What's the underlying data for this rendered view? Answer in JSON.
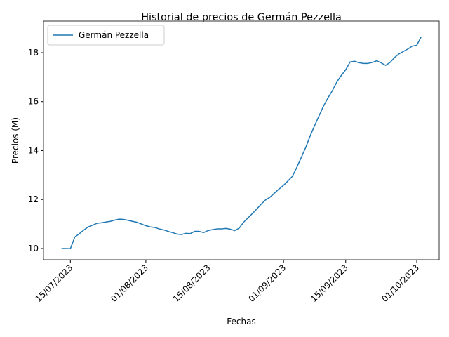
{
  "chart_data": {
    "type": "line",
    "title": "Historial de precios de Germán Pezzella",
    "xlabel": "Fechas",
    "ylabel": "Precios (M)",
    "x": [
      "2023-07-13",
      "2023-07-14",
      "2023-07-15",
      "2023-07-16",
      "2023-07-17",
      "2023-07-18",
      "2023-07-19",
      "2023-07-20",
      "2023-07-21",
      "2023-07-22",
      "2023-07-23",
      "2023-07-24",
      "2023-07-25",
      "2023-07-26",
      "2023-07-27",
      "2023-07-28",
      "2023-07-29",
      "2023-07-30",
      "2023-07-31",
      "2023-08-01",
      "2023-08-02",
      "2023-08-03",
      "2023-08-04",
      "2023-08-05",
      "2023-08-06",
      "2023-08-07",
      "2023-08-08",
      "2023-08-09",
      "2023-08-10",
      "2023-08-11",
      "2023-08-12",
      "2023-08-13",
      "2023-08-14",
      "2023-08-15",
      "2023-08-16",
      "2023-08-17",
      "2023-08-18",
      "2023-08-19",
      "2023-08-20",
      "2023-08-21",
      "2023-08-22",
      "2023-08-23",
      "2023-08-24",
      "2023-08-25",
      "2023-08-26",
      "2023-08-27",
      "2023-08-28",
      "2023-08-29",
      "2023-08-30",
      "2023-08-31",
      "2023-09-01",
      "2023-09-02",
      "2023-09-03",
      "2023-09-04",
      "2023-09-05",
      "2023-09-06",
      "2023-09-07",
      "2023-09-08",
      "2023-09-09",
      "2023-09-10",
      "2023-09-11",
      "2023-09-12",
      "2023-09-13",
      "2023-09-14",
      "2023-09-15",
      "2023-09-16",
      "2023-09-17",
      "2023-09-18",
      "2023-09-19",
      "2023-09-20",
      "2023-09-21",
      "2023-09-22",
      "2023-09-23",
      "2023-09-24",
      "2023-09-25",
      "2023-09-26",
      "2023-09-27",
      "2023-09-28",
      "2023-09-29",
      "2023-09-30",
      "2023-10-01",
      "2023-10-02"
    ],
    "series": [
      {
        "name": "Germán Pezzella",
        "color": "#1f77b4",
        "values": [
          10.0,
          10.0,
          9.99,
          10.47,
          10.6,
          10.75,
          10.88,
          10.95,
          11.03,
          11.05,
          11.08,
          11.11,
          11.16,
          11.2,
          11.19,
          11.15,
          11.11,
          11.07,
          11.0,
          10.93,
          10.88,
          10.86,
          10.8,
          10.76,
          10.7,
          10.65,
          10.59,
          10.57,
          10.62,
          10.61,
          10.7,
          10.7,
          10.65,
          10.73,
          10.77,
          10.8,
          10.8,
          10.82,
          10.79,
          10.73,
          10.83,
          11.07,
          11.25,
          11.43,
          11.62,
          11.82,
          11.99,
          12.1,
          12.27,
          12.43,
          12.58,
          12.76,
          12.95,
          13.32,
          13.72,
          14.13,
          14.6,
          15.02,
          15.42,
          15.82,
          16.15,
          16.45,
          16.8,
          17.07,
          17.3,
          17.62,
          17.65,
          17.59,
          17.56,
          17.56,
          17.6,
          17.67,
          17.58,
          17.48,
          17.6,
          17.8,
          17.95,
          18.05,
          18.15,
          18.27,
          18.3,
          18.65
        ]
      }
    ],
    "xlim": [
      "2023-07-08T22:48",
      "2023-10-06T01:12"
    ],
    "xticks": [
      {
        "value": "2023-07-15",
        "label": "15/07/2023"
      },
      {
        "value": "2023-08-01",
        "label": "01/08/2023"
      },
      {
        "value": "2023-08-15",
        "label": "15/08/2023"
      },
      {
        "value": "2023-09-01",
        "label": "01/09/2023"
      },
      {
        "value": "2023-09-15",
        "label": "15/09/2023"
      },
      {
        "value": "2023-10-01",
        "label": "01/10/2023"
      }
    ],
    "ylim": [
      9.54,
      19.29
    ],
    "yticks": [
      10,
      12,
      14,
      16,
      18
    ],
    "legend": "upper left"
  }
}
